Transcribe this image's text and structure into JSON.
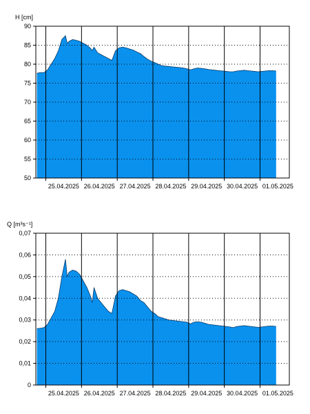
{
  "colors": {
    "fill": "#0a91ee",
    "background": "#ffffff",
    "frame": "#000000",
    "grid": "#000000"
  },
  "chart_data": [
    {
      "type": "area",
      "title": "",
      "ylabel": "H [cm]",
      "xlabel": "",
      "ylim": [
        50,
        90
      ],
      "yticks": [
        "50",
        "55",
        "60",
        "65",
        "70",
        "75",
        "80",
        "85",
        "90"
      ],
      "ytick_values": [
        50,
        55,
        60,
        65,
        70,
        75,
        80,
        85,
        90
      ],
      "xtick_labels": [
        "25.04.2025",
        "26.04.2025",
        "27.04.2025",
        "28.04.2025",
        "29.04.2025",
        "30.04.2025",
        "01.05.2025"
      ],
      "x_unit": "days since 24.04.2025 00:00",
      "xlim": [
        0.72,
        7.82
      ],
      "grid": {
        "vertical": "solid at day boundaries",
        "horizontal": "dotted"
      },
      "x": [
        0.75,
        0.85,
        0.95,
        1.05,
        1.15,
        1.25,
        1.35,
        1.45,
        1.55,
        1.6,
        1.65,
        1.75,
        1.85,
        1.95,
        2.05,
        2.15,
        2.25,
        2.3,
        2.35,
        2.45,
        2.55,
        2.65,
        2.75,
        2.85,
        2.95,
        3.05,
        3.15,
        3.25,
        3.35,
        3.45,
        3.55,
        3.65,
        3.75,
        3.85,
        3.95,
        4.05,
        4.15,
        4.25,
        4.35,
        4.45,
        4.55,
        4.65,
        4.75,
        4.85,
        4.95,
        5.05,
        5.15,
        5.25,
        5.35,
        5.45,
        5.55,
        5.65,
        5.75,
        5.85,
        5.95,
        6.05,
        6.15,
        6.25,
        6.35,
        6.45,
        6.55,
        6.65,
        6.75,
        6.85,
        6.95,
        7.05,
        7.15,
        7.25,
        7.35,
        7.45
      ],
      "values": [
        77.6,
        77.8,
        77.8,
        78.5,
        80,
        81.5,
        83.5,
        86.5,
        87.5,
        85.5,
        86,
        86.5,
        86.3,
        86,
        85.5,
        85,
        84.2,
        83.6,
        84.5,
        83,
        82.5,
        82,
        81.5,
        81,
        83.5,
        84.3,
        84.5,
        84.3,
        84,
        83.7,
        83.2,
        82.8,
        82,
        81.3,
        80.8,
        80.4,
        80,
        79.6,
        79.5,
        79.4,
        79.3,
        79.2,
        79.1,
        79,
        78.8,
        78.5,
        78.8,
        79,
        78.9,
        78.8,
        78.6,
        78.5,
        78.4,
        78.3,
        78.2,
        78.1,
        78,
        78,
        78.2,
        78.3,
        78.4,
        78.3,
        78.2,
        78.1,
        78,
        78.1,
        78.2,
        78.3,
        78.3,
        78.2
      ]
    },
    {
      "type": "area",
      "title": "",
      "ylabel": "Q [m³s⁻¹]",
      "xlabel": "",
      "ylim": [
        0,
        0.07
      ],
      "yticks": [
        "0",
        "0,01",
        "0,02",
        "0,03",
        "0,04",
        "0,05",
        "0,06",
        "0,07"
      ],
      "ytick_values": [
        0,
        0.01,
        0.02,
        0.03,
        0.04,
        0.05,
        0.06,
        0.07
      ],
      "xtick_labels": [
        "25.04.2025",
        "26.04.2025",
        "27.04.2025",
        "28.04.2025",
        "29.04.2025",
        "30.04.2025",
        "01.05.2025"
      ],
      "x_unit": "days since 24.04.2025 00:00",
      "xlim": [
        0.72,
        7.82
      ],
      "grid": {
        "vertical": "solid at day boundaries",
        "horizontal": "dotted"
      },
      "x": [
        0.75,
        0.85,
        0.95,
        1.05,
        1.15,
        1.25,
        1.35,
        1.45,
        1.55,
        1.6,
        1.65,
        1.75,
        1.85,
        1.95,
        2.05,
        2.15,
        2.25,
        2.3,
        2.35,
        2.45,
        2.55,
        2.65,
        2.75,
        2.85,
        2.95,
        3.05,
        3.15,
        3.25,
        3.35,
        3.45,
        3.55,
        3.65,
        3.75,
        3.85,
        3.95,
        4.05,
        4.15,
        4.25,
        4.35,
        4.45,
        4.55,
        4.65,
        4.75,
        4.85,
        4.95,
        5.05,
        5.15,
        5.25,
        5.35,
        5.45,
        5.55,
        5.65,
        5.75,
        5.85,
        5.95,
        6.05,
        6.15,
        6.25,
        6.35,
        6.45,
        6.55,
        6.65,
        6.75,
        6.85,
        6.95,
        7.05,
        7.15,
        7.25,
        7.35,
        7.45
      ],
      "values": [
        0.026,
        0.0262,
        0.0265,
        0.028,
        0.031,
        0.034,
        0.04,
        0.05,
        0.058,
        0.05,
        0.052,
        0.053,
        0.0525,
        0.051,
        0.048,
        0.045,
        0.041,
        0.038,
        0.045,
        0.04,
        0.038,
        0.036,
        0.034,
        0.033,
        0.041,
        0.0435,
        0.044,
        0.0435,
        0.043,
        0.042,
        0.041,
        0.039,
        0.038,
        0.036,
        0.034,
        0.033,
        0.0315,
        0.031,
        0.0305,
        0.03,
        0.0298,
        0.0296,
        0.0294,
        0.0292,
        0.029,
        0.0282,
        0.029,
        0.0292,
        0.029,
        0.0285,
        0.028,
        0.0278,
        0.0276,
        0.0274,
        0.0272,
        0.027,
        0.0268,
        0.0265,
        0.027,
        0.0272,
        0.0274,
        0.0272,
        0.027,
        0.0268,
        0.0266,
        0.0268,
        0.027,
        0.0272,
        0.0272,
        0.027
      ]
    }
  ]
}
